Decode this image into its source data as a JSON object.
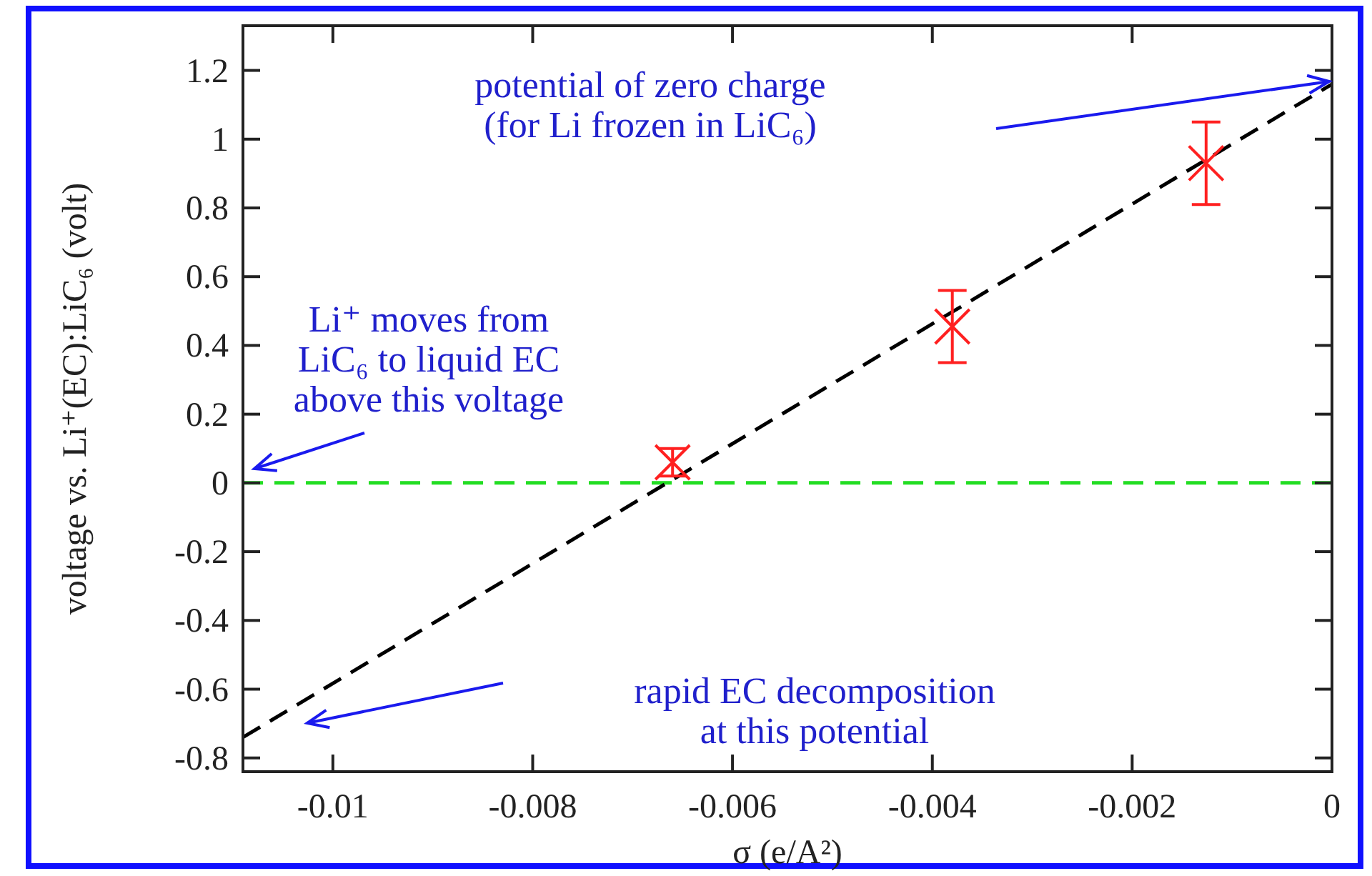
{
  "chart_data": {
    "type": "scatter",
    "xlabel": "σ (e/A²)",
    "ylabel": "voltage vs. Li⁺(EC):LiC₆ (volt)",
    "xlim": [
      -0.0109,
      0
    ],
    "ylim": [
      -0.84,
      1.33
    ],
    "xticks": [
      -0.01,
      -0.008,
      -0.006,
      -0.004,
      -0.002,
      0
    ],
    "yticks": [
      -0.8,
      -0.6,
      -0.4,
      -0.2,
      0,
      0.2,
      0.4,
      0.6,
      0.8,
      1,
      1.2
    ],
    "grid": false,
    "series": [
      {
        "type": "line",
        "color": "#000000",
        "x": [
          -0.0109,
          0
        ],
        "values": [
          -0.74,
          1.16
        ],
        "line_style": "dashed",
        "marker": "none"
      },
      {
        "color": "#ff2020",
        "x": [
          -0.0066,
          -0.0038,
          -0.00126
        ],
        "values": [
          0.06,
          0.455,
          0.93
        ],
        "errors": [
          0.04,
          0.105,
          0.12
        ],
        "marker": "cross"
      }
    ],
    "ref_lines": [
      {
        "axis": "y",
        "value": 0,
        "color": "#22dd22",
        "line_style": "dashed"
      }
    ],
    "annotations": [
      "potential of zero charge\n(for Li frozen in LiC₆)",
      "Li⁺ moves from\nLiC₆ to liquid EC\nabove this voltage",
      "rapid EC decomposition\nat this potential"
    ]
  }
}
